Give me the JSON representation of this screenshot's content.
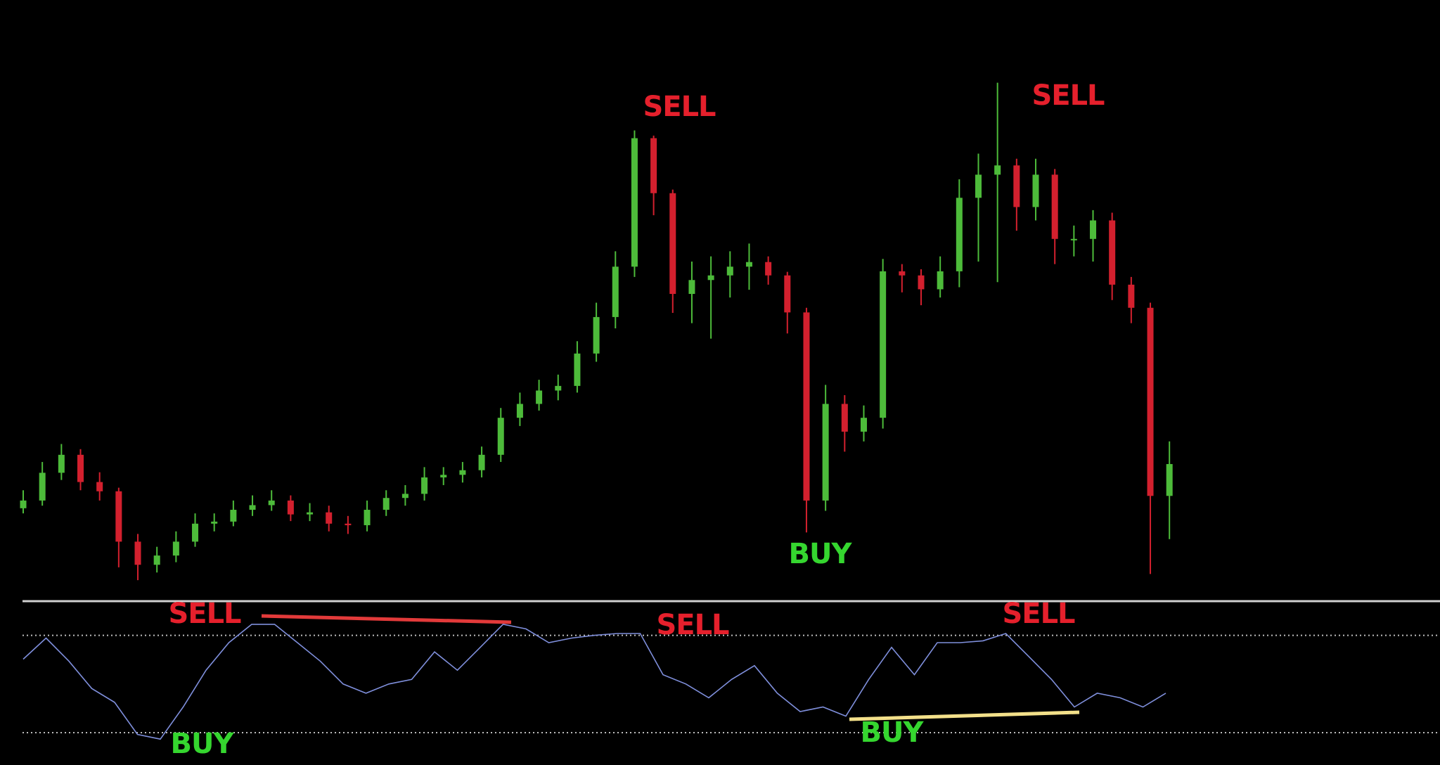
{
  "chart_data": [
    {
      "type": "candlestick",
      "up_color": "#4dbb3a",
      "down_color": "#d3202e",
      "annotations": [
        "SELL",
        "SELL",
        "BUY"
      ],
      "annotation_colors": [
        "#e5202c",
        "#e5202c",
        "#35d62f"
      ],
      "open": [
        16,
        17.5,
        22.9,
        26.4,
        21.1,
        19.3,
        9.5,
        5,
        6.8,
        9.5,
        13,
        13.4,
        15.7,
        16.6,
        17.5,
        14.8,
        15.2,
        13,
        12.7,
        15.7,
        18,
        18.8,
        22,
        22.5,
        23.4,
        26.4,
        33.6,
        36.3,
        38.9,
        39.8,
        46.1,
        53.2,
        63,
        88,
        77.3,
        57.7,
        60.4,
        61.3,
        63,
        63.9,
        61.3,
        54.1,
        17.5,
        36.3,
        30.9,
        33.6,
        62.1,
        61.3,
        58.6,
        62.1,
        76.4,
        80.9,
        82.7,
        74.6,
        80.9,
        68.4,
        68.4,
        72,
        59.5,
        55,
        18.4
      ],
      "high": [
        19.5,
        25,
        28.5,
        27.5,
        23,
        20,
        11,
        8.5,
        11.5,
        15,
        15,
        17.5,
        18.5,
        19.5,
        18.5,
        17,
        16.5,
        14.5,
        17.5,
        19.5,
        20.5,
        24,
        24,
        25,
        28,
        35.5,
        38.5,
        41,
        42,
        48.5,
        56,
        66,
        89.5,
        88.5,
        78,
        64,
        65,
        66,
        67.5,
        65,
        62,
        55,
        40,
        38,
        36,
        64.5,
        63.5,
        62.5,
        65,
        80,
        85,
        98.8,
        84,
        84,
        82,
        71,
        74,
        73.5,
        61,
        56,
        29
      ],
      "low": [
        15,
        16.5,
        21.5,
        19.5,
        17.5,
        4.5,
        2,
        3.5,
        5.5,
        8.5,
        11.5,
        12.5,
        14.5,
        15.5,
        13.5,
        13.5,
        11.5,
        11,
        11.5,
        14.5,
        16.5,
        17.5,
        20.5,
        21,
        22,
        25,
        32,
        35,
        37,
        38.5,
        44.5,
        51,
        61,
        73,
        54,
        52,
        49,
        57,
        58.5,
        59.5,
        50,
        11.3,
        15.5,
        27,
        29,
        31.5,
        58,
        55.5,
        57,
        59,
        64,
        60,
        70,
        72,
        63.5,
        65,
        64,
        56.5,
        52,
        3.2,
        10
      ],
      "close": [
        17.5,
        22.9,
        26.4,
        21.1,
        19.3,
        9.5,
        5,
        6.8,
        9.5,
        13,
        13.4,
        15.7,
        16.6,
        17.5,
        14.8,
        15.2,
        13,
        12.7,
        15.7,
        18,
        18.8,
        22,
        22.5,
        23.4,
        26.4,
        33.6,
        36.3,
        38.9,
        39.8,
        46.1,
        53.2,
        63,
        88,
        77.3,
        57.7,
        60.4,
        61.3,
        63,
        63.9,
        61.3,
        54.1,
        17.5,
        36.3,
        30.9,
        33.6,
        62.1,
        61.3,
        58.6,
        62.1,
        76.4,
        80.9,
        82.7,
        74.6,
        80.9,
        68.4,
        68.4,
        72,
        59.5,
        55,
        18.4,
        24.6
      ]
    },
    {
      "type": "line",
      "color": "#7f8fdc",
      "levels": [
        80,
        20
      ],
      "annotations": [
        "SELL",
        "SELL",
        "SELL",
        "BUY",
        "BUY"
      ],
      "annotation_colors": [
        "#e5202c",
        "#e5202c",
        "#e5202c",
        "#35d62f",
        "#35d62f"
      ],
      "values": [
        65.3,
        78.3,
        64.1,
        47.2,
        38.7,
        18.9,
        16,
        35.8,
        58.5,
        75.5,
        86.8,
        86.8,
        75.5,
        64.1,
        50,
        44.3,
        50,
        52.8,
        69.8,
        58.5,
        72.6,
        86.8,
        84,
        75.5,
        78.3,
        80,
        81.1,
        81.1,
        55.7,
        50,
        41.5,
        52.8,
        61.3,
        44.3,
        33,
        35.8,
        30.2,
        52.8,
        72.6,
        55.7,
        75.5,
        75.5,
        76.6,
        81.1,
        67,
        52.8,
        35.8,
        44.3,
        41.5,
        35.8,
        44.3
      ]
    }
  ]
}
